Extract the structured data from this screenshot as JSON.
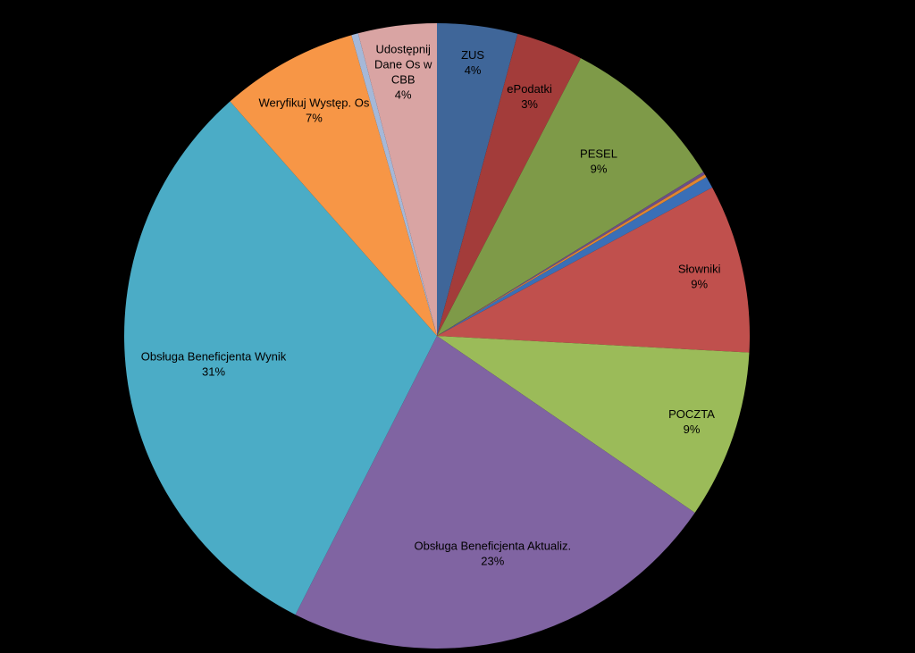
{
  "chart_data": {
    "type": "pie",
    "title": "",
    "slices": [
      {
        "label": "ZUS",
        "value_label": "4%",
        "value": 4.1,
        "color": "#3F6699"
      },
      {
        "label": "ePodatki",
        "value_label": "3%",
        "value": 3.4,
        "color": "#A33C3A"
      },
      {
        "label": "PESEL",
        "value_label": "9%",
        "value": 8.5,
        "color": "#7E9A48"
      },
      {
        "label": "",
        "value_label": "",
        "value": 0.15,
        "color": "#6B4F87"
      },
      {
        "label": "",
        "value_label": "",
        "value": 0.15,
        "color": "#E0852F"
      },
      {
        "label": "",
        "value_label": "",
        "value": 0.6,
        "color": "#3A6FB7"
      },
      {
        "label": "Słowniki",
        "value_label": "9%",
        "value": 8.6,
        "color": "#C0504D"
      },
      {
        "label": "POCZTA",
        "value_label": "9%",
        "value": 8.6,
        "color": "#9BBB59"
      },
      {
        "label": "Obsługa Beneficjenta Aktualiz.",
        "value_label": "23%",
        "value": 22.6,
        "color": "#8064A2"
      },
      {
        "label": "Obsługa Beneficjenta Wynik",
        "value_label": "31%",
        "value": 30.6,
        "color": "#4BACC6"
      },
      {
        "label": "Weryfikuj Występ. Os",
        "value_label": "7%",
        "value": 7.0,
        "color": "#F79646"
      },
      {
        "label": "",
        "value_label": "",
        "value": 0.35,
        "color": "#A5B8D8"
      },
      {
        "label": "Udostępnij Dane Os w CBB",
        "value_label": "4%",
        "value": 4.0,
        "color": "#D9A4A3"
      }
    ],
    "legend": "none",
    "background": "#000000"
  }
}
